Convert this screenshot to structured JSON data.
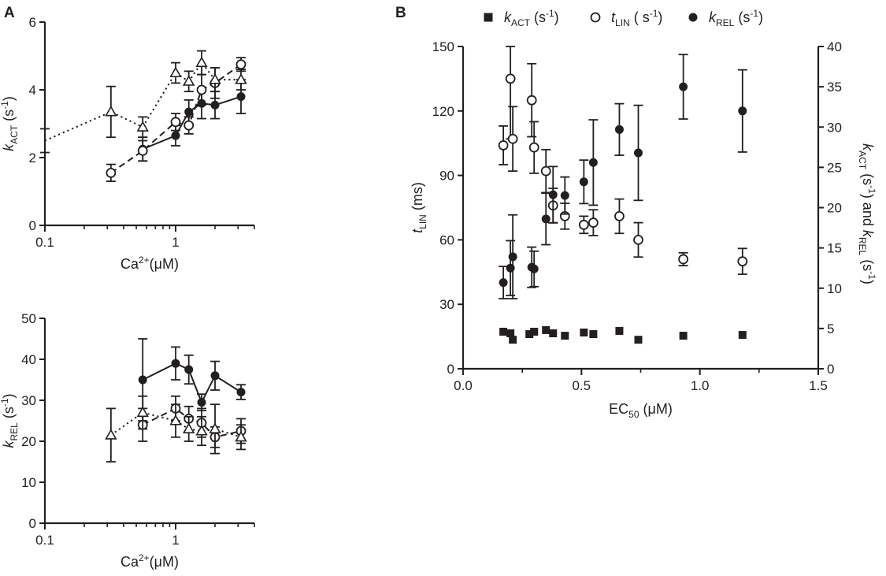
{
  "panels": {
    "a": {
      "letter": "A"
    },
    "b": {
      "letter": "B"
    }
  },
  "chart_data": [
    {
      "type": "line",
      "panel": "A-top",
      "xlabel": "Ca2+(μM)",
      "ylabel": "kACT (s-1)",
      "xscale": "log",
      "xlim": [
        0.1,
        4
      ],
      "ylim": [
        0,
        6
      ],
      "x_ticks": [
        {
          "value": 0.1,
          "label": "0.1"
        },
        {
          "value": 1,
          "label": "1"
        }
      ],
      "y_ticks": [
        0,
        2,
        4,
        6
      ],
      "series": [
        {
          "style": "solid",
          "marker": "filled-circle",
          "x": [
            0.56,
            1.0,
            1.26,
            1.58,
            2.0,
            3.16
          ],
          "y": [
            2.25,
            2.65,
            3.35,
            3.6,
            3.55,
            3.8
          ],
          "err": [
            0.35,
            0.3,
            0.35,
            0.45,
            0.4,
            0.5
          ]
        },
        {
          "style": "dashed",
          "marker": "open-circle",
          "x": [
            0.32,
            0.56,
            1.0,
            1.26,
            1.58,
            2.0,
            3.16
          ],
          "y": [
            1.55,
            2.2,
            3.05,
            2.95,
            4.0,
            4.2,
            4.75
          ],
          "err": [
            0.25,
            0.3,
            0.25,
            0.25,
            0.45,
            0.45,
            0.2
          ]
        },
        {
          "style": "dotted",
          "marker": "open-triangle",
          "x": [
            0.1,
            0.32,
            0.56,
            1.0,
            1.26,
            1.58,
            2.0,
            3.16
          ],
          "y": [
            2.5,
            3.35,
            2.9,
            4.5,
            4.25,
            4.8,
            4.3,
            4.3
          ],
          "err": [
            0.35,
            0.75,
            0.3,
            0.3,
            0.3,
            0.35,
            0.35,
            0.3
          ]
        }
      ]
    },
    {
      "type": "line",
      "panel": "A-bottom",
      "xlabel": "Ca2+(μM)",
      "ylabel": "kREL (s-1)",
      "xscale": "log",
      "xlim": [
        0.1,
        4
      ],
      "ylim": [
        0,
        50
      ],
      "x_ticks": [
        {
          "value": 0.1,
          "label": "0.1"
        },
        {
          "value": 1,
          "label": "1"
        }
      ],
      "y_ticks": [
        0,
        10,
        20,
        30,
        40,
        50
      ],
      "series": [
        {
          "style": "solid",
          "marker": "filled-circle",
          "x": [
            0.56,
            1.0,
            1.26,
            1.58,
            2.0,
            3.16
          ],
          "y": [
            35,
            39,
            37.5,
            29.5,
            36,
            32
          ],
          "err": [
            10,
            4,
            3.5,
            2,
            3.5,
            1.8
          ]
        },
        {
          "style": "dashed",
          "marker": "open-circle",
          "x": [
            0.56,
            1.0,
            1.26,
            1.58,
            2.0,
            3.16
          ],
          "y": [
            24,
            28,
            25.5,
            24.5,
            21,
            22.5
          ],
          "err": [
            4,
            3,
            3,
            3.5,
            2.5,
            3
          ]
        },
        {
          "style": "dotted",
          "marker": "open-triangle",
          "x": [
            0.32,
            0.56,
            1.0,
            1.26,
            1.58,
            2.0,
            3.16
          ],
          "y": [
            21.5,
            27,
            25,
            23,
            22.5,
            23,
            21
          ],
          "err": [
            6.5,
            4,
            4,
            3,
            3.5,
            6,
            3
          ]
        }
      ]
    },
    {
      "type": "scatter",
      "panel": "B",
      "xlabel": "EC50 (μM)",
      "ylabel": "tLIN (ms)",
      "y2label": "kACT (s-1) and kREL (s-1)",
      "xlim": [
        0,
        1.5
      ],
      "ylim": [
        0,
        150
      ],
      "y2lim": [
        0,
        40
      ],
      "x_ticks": [
        "0.0",
        "0.5",
        "1.0",
        "1.5"
      ],
      "y_ticks": [
        0,
        30,
        60,
        90,
        120,
        150
      ],
      "y2_ticks": [
        0,
        5,
        10,
        15,
        20,
        25,
        30,
        35,
        40
      ],
      "legend": [
        "kACT (s-1)",
        "tLIN ( s-1)",
        "kREL (s-1)"
      ],
      "legend_position": "top",
      "series": [
        {
          "name": "kACT (s-1)",
          "axis": "right",
          "marker": "filled-square",
          "x": [
            0.17,
            0.2,
            0.21,
            0.28,
            0.3,
            0.35,
            0.38,
            0.43,
            0.51,
            0.55,
            0.66,
            0.74,
            0.93,
            1.18
          ],
          "y": [
            4.6,
            4.4,
            3.6,
            4.3,
            4.6,
            4.8,
            4.4,
            4.1,
            4.5,
            4.3,
            4.7,
            3.6,
            4.1,
            4.2
          ]
        },
        {
          "name": "tLIN ( s-1)",
          "axis": "left",
          "marker": "open-circle",
          "x": [
            0.17,
            0.2,
            0.21,
            0.29,
            0.3,
            0.35,
            0.38,
            0.43,
            0.51,
            0.55,
            0.66,
            0.74,
            0.93,
            1.18
          ],
          "y": [
            104,
            135,
            107,
            125,
            103,
            92,
            76,
            71,
            67,
            68,
            71,
            60,
            51,
            50
          ],
          "err": [
            9,
            28,
            15,
            17,
            12,
            10,
            8,
            6,
            4,
            6,
            8,
            8,
            3,
            6
          ]
        },
        {
          "name": "kREL (s-1)",
          "axis": "right",
          "marker": "filled-circle",
          "x": [
            0.17,
            0.2,
            0.21,
            0.29,
            0.3,
            0.35,
            0.38,
            0.43,
            0.51,
            0.55,
            0.66,
            0.74,
            0.93,
            1.18
          ],
          "y": [
            10.7,
            12.5,
            13.9,
            12.6,
            12.4,
            18.6,
            21.6,
            21.5,
            23.2,
            25.6,
            29.7,
            26.8,
            35.0,
            32.0
          ],
          "err": [
            2.0,
            3.4,
            5.2,
            2.5,
            2.2,
            3.2,
            3.5,
            2.3,
            2.7,
            5.3,
            3.2,
            5.9,
            4.0,
            5.1
          ]
        }
      ]
    }
  ]
}
